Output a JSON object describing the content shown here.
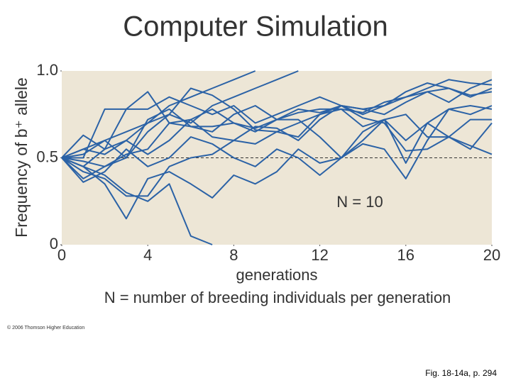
{
  "chart_data": {
    "type": "line",
    "title": "Computer Simulation",
    "y_label": "Frequency of b⁺ allele",
    "x_label": "generations",
    "caption": "N = number of breeding individuals per generation",
    "annotation": "N = 10",
    "copyright": "© 2006 Thomson Higher Education",
    "figure_ref": "Fig. 18-14a, p. 294",
    "color": "#2b62a6",
    "background": "#ede6d6",
    "hline": 0.5,
    "xlim": [
      0,
      20
    ],
    "xticks": [
      0,
      4,
      8,
      12,
      16,
      20
    ],
    "ylim": [
      0,
      1
    ],
    "yticks": [
      0,
      0.5,
      {
        "value": 1,
        "label": "1.0"
      }
    ],
    "x": [
      0,
      1,
      2,
      3,
      4,
      5,
      6,
      7,
      8,
      9,
      10,
      11,
      12,
      13,
      14,
      15,
      16,
      17,
      18,
      19,
      20
    ],
    "series": [
      {
        "values": [
          0.5,
          0.55,
          0.6,
          0.65,
          0.7,
          0.8,
          0.85,
          0.9,
          0.95,
          1,
          null,
          null,
          null,
          null,
          null,
          null,
          null,
          null,
          null,
          null,
          null
        ]
      },
      {
        "values": [
          0.5,
          0.45,
          0.55,
          0.6,
          0.7,
          0.75,
          0.7,
          0.8,
          0.85,
          0.9,
          0.95,
          1,
          null,
          null,
          null,
          null,
          null,
          null,
          null,
          null,
          null
        ]
      },
      {
        "values": [
          0.5,
          0.45,
          0.4,
          0.3,
          0.25,
          0.35,
          0.05,
          0,
          null,
          null,
          null,
          null,
          null,
          null,
          null,
          null,
          null,
          null,
          null,
          null,
          null
        ]
      },
      {
        "values": [
          0.5,
          0.63,
          0.55,
          0.78,
          0.78,
          0.85,
          0.8,
          0.75,
          0.8,
          0.7,
          0.75,
          0.8,
          0.85,
          0.8,
          0.75,
          0.8,
          0.85,
          0.9,
          0.95,
          0.93,
          0.92
        ]
      },
      {
        "values": [
          0.5,
          0.5,
          0.78,
          0.78,
          0.88,
          0.7,
          0.68,
          0.68,
          0.7,
          0.67,
          0.72,
          0.78,
          0.76,
          0.8,
          0.78,
          0.75,
          0.82,
          0.88,
          0.82,
          0.9,
          0.95
        ]
      },
      {
        "values": [
          0.5,
          0.38,
          0.45,
          0.52,
          0.55,
          0.7,
          0.72,
          0.62,
          0.6,
          0.68,
          0.67,
          0.6,
          0.72,
          0.8,
          0.73,
          0.7,
          0.54,
          0.55,
          0.62,
          0.57,
          0.52
        ]
      },
      {
        "values": [
          0.5,
          0.36,
          0.42,
          0.55,
          0.45,
          0.5,
          0.62,
          0.58,
          0.5,
          0.45,
          0.55,
          0.5,
          0.4,
          0.5,
          0.6,
          0.72,
          0.6,
          0.7,
          0.78,
          0.75,
          0.8
        ]
      },
      {
        "values": [
          0.5,
          0.42,
          0.38,
          0.28,
          0.28,
          0.45,
          0.5,
          0.52,
          0.6,
          0.58,
          0.65,
          0.62,
          0.75,
          0.78,
          0.68,
          0.72,
          0.47,
          0.7,
          0.62,
          0.72,
          0.72
        ]
      },
      {
        "values": [
          0.5,
          0.45,
          0.35,
          0.15,
          0.38,
          0.42,
          0.35,
          0.27,
          0.4,
          0.35,
          0.42,
          0.55,
          0.47,
          0.5,
          0.65,
          0.72,
          0.75,
          0.62,
          0.62,
          0.55,
          0.7
        ]
      },
      {
        "values": [
          0.5,
          0.52,
          0.6,
          0.5,
          0.65,
          0.75,
          0.9,
          0.86,
          0.78,
          0.66,
          0.65,
          0.7,
          0.75,
          0.8,
          0.78,
          0.8,
          0.88,
          0.93,
          0.9,
          0.85,
          0.9
        ]
      },
      {
        "values": [
          0.5,
          0.55,
          0.52,
          0.6,
          0.52,
          0.6,
          0.72,
          0.78,
          0.7,
          0.65,
          0.72,
          0.72,
          0.62,
          0.5,
          0.58,
          0.55,
          0.38,
          0.6,
          0.78,
          0.8,
          0.78
        ]
      },
      {
        "values": [
          0.5,
          0.48,
          0.45,
          0.5,
          0.72,
          0.78,
          0.68,
          0.65,
          0.75,
          0.8,
          0.72,
          0.76,
          0.78,
          0.78,
          0.76,
          0.82,
          0.85,
          0.88,
          0.9,
          0.86,
          0.88
        ]
      }
    ]
  }
}
